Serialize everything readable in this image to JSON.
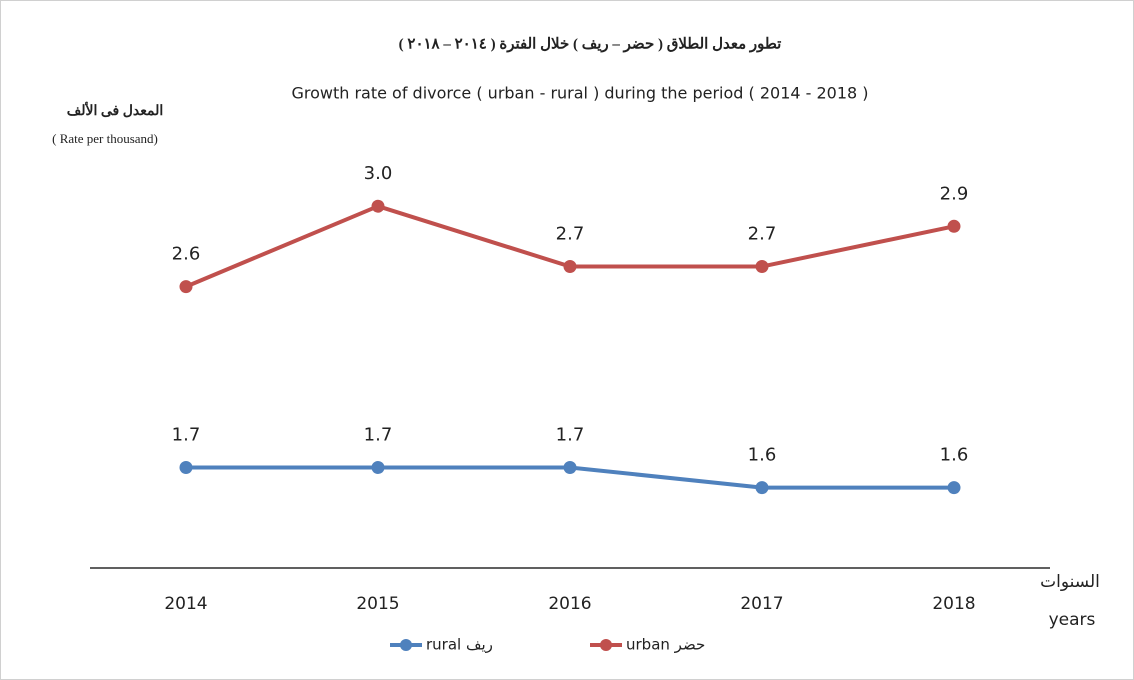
{
  "chart_data": {
    "type": "line",
    "title": "تطور معدل الطلاق ( حضر – ريف ) خلال الفترة ( ٢٠١٤ – ٢٠١٨ )",
    "subtitle": "Growth rate of divorce  ( urban - rural ) during the period ( 2014 - 2018 )",
    "y_label": "المعدل فى الألف",
    "y_label_en": "( Rate per thousand)",
    "x_label": "السنوات",
    "x_label_en": "years",
    "categories": [
      "2014",
      "2015",
      "2016",
      "2017",
      "2018"
    ],
    "series": [
      {
        "name": "rural ريف",
        "color": "#4f81bd",
        "values": [
          1.7,
          1.7,
          1.7,
          1.6,
          1.6
        ],
        "value_labels": [
          "1.7",
          "1.7",
          "1.7",
          "1.6",
          "1.6"
        ]
      },
      {
        "name": "urban حضر",
        "color": "#c0504d",
        "values": [
          2.6,
          3.0,
          2.7,
          2.7,
          2.9
        ],
        "value_labels": [
          "2.6",
          "3.0",
          "2.7",
          "2.7",
          "2.9"
        ]
      }
    ],
    "ylim": [
      1.2,
      3.2
    ],
    "legend": "bottom"
  }
}
